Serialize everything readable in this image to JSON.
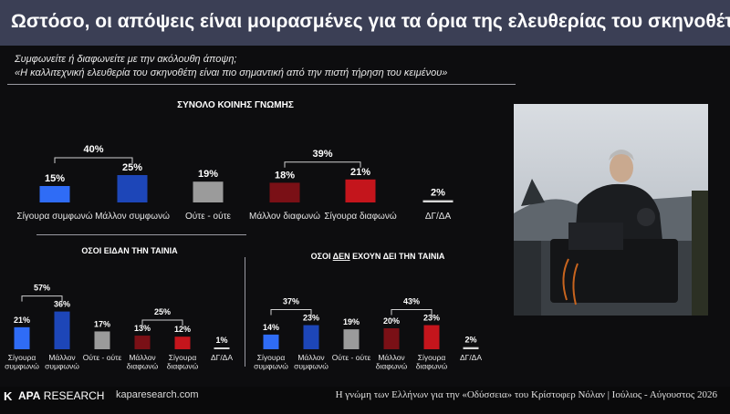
{
  "title": "Ωστόσο, οι απόψεις είναι μοιρασμένες για τα όρια της ελευθερίας του σκηνοθέτη",
  "question": {
    "line1": "Συμφωνείτε ή διαφωνείτε με την ακόλουθη άποψη;",
    "line2": "«Η καλλιτεχνική ελευθερία του σκηνοθέτη είναι πιο σημαντική από την πιστή τήρηση του κειμένου»"
  },
  "footer": {
    "logo_mark": "K",
    "logo_bold": "APA",
    "logo_rest": " RESEARCH",
    "site": "kaparesearch.com",
    "note": "Η γνώμη των Ελλήνων για την «Οδύσσεια» του Κρίστοφερ Νόλαν | Ιούλιος - Αύγουστος 2026"
  },
  "colors": {
    "strongly_agree": "#2f6cf6",
    "rather_agree": "#1d46b8",
    "neither": "#9b9b9b",
    "rather_disagree": "#7a1016",
    "strongly_disagree": "#c4151c",
    "dk": "#d8d8d8"
  },
  "chart_data": [
    {
      "type": "bar",
      "title": "ΣΥΝΟΛΟ ΚΟΙΝΗΣ ΓΝΩΜΗΣ",
      "categories": [
        "Σίγουρα συμφωνώ",
        "Μάλλον συμφωνώ",
        "Ούτε - ούτε",
        "Μάλλον διαφωνώ",
        "Σίγουρα διαφωνώ",
        "ΔΓ/ΔΑ"
      ],
      "values": [
        15,
        25,
        19,
        18,
        21,
        2
      ],
      "value_labels": [
        "15%",
        "25%",
        "19%",
        "18%",
        "21%",
        "2%"
      ],
      "groups": [
        {
          "label": "40%",
          "value": 40,
          "from": 0,
          "to": 1
        },
        {
          "label": "39%",
          "value": 39,
          "from": 3,
          "to": 4
        }
      ]
    },
    {
      "type": "bar",
      "title": "ΟΣΟΙ ΕΙΔΑΝ ΤΗΝ ΤΑΙΝΙΑ",
      "categories": [
        "Σίγουρα συμφωνώ",
        "Μάλλον συμφωνώ",
        "Ούτε - ούτε",
        "Μάλλον διαφωνώ",
        "Σίγουρα διαφωνώ",
        "ΔΓ/ΔΑ"
      ],
      "tick_lines": [
        [
          "Σίγουρα",
          "συμφωνώ"
        ],
        [
          "Μάλλον",
          "συμφωνώ"
        ],
        [
          "Ούτε - ούτε"
        ],
        [
          "Μάλλον",
          "διαφωνώ"
        ],
        [
          "Σίγουρα",
          "διαφωνώ"
        ],
        [
          "ΔΓ/ΔΑ"
        ]
      ],
      "values": [
        21,
        36,
        17,
        13,
        12,
        1
      ],
      "value_labels": [
        "21%",
        "36%",
        "17%",
        "13%",
        "12%",
        "1%"
      ],
      "groups": [
        {
          "label": "57%",
          "value": 57,
          "from": 0,
          "to": 1
        },
        {
          "label": "25%",
          "value": 25,
          "from": 3,
          "to": 4
        }
      ]
    },
    {
      "type": "bar",
      "title_parts": [
        "ΟΣΟΙ ",
        "ΔΕΝ",
        " ΕΧΟΥΝ ΔΕΙ ΤΗΝ ΤΑΙΝΙΑ"
      ],
      "categories": [
        "Σίγουρα συμφωνώ",
        "Μάλλον συμφωνώ",
        "Ούτε - ούτε",
        "Μάλλον διαφωνώ",
        "Σίγουρα διαφωνώ",
        "ΔΓ/ΔΑ"
      ],
      "tick_lines": [
        [
          "Σίγουρα",
          "συμφωνώ"
        ],
        [
          "Μάλλον",
          "συμφωνώ"
        ],
        [
          "Ούτε - ούτε"
        ],
        [
          "Μάλλον",
          "διαφωνώ"
        ],
        [
          "Σίγουρα",
          "διαφωνώ"
        ],
        [
          "ΔΓ/ΔΑ"
        ]
      ],
      "values": [
        14,
        23,
        19,
        20,
        23,
        2
      ],
      "value_labels": [
        "14%",
        "23%",
        "19%",
        "20%",
        "23%",
        "2%"
      ],
      "groups": [
        {
          "label": "37%",
          "value": 37,
          "from": 0,
          "to": 1
        },
        {
          "label": "43%",
          "value": 43,
          "from": 3,
          "to": 4
        }
      ]
    }
  ]
}
